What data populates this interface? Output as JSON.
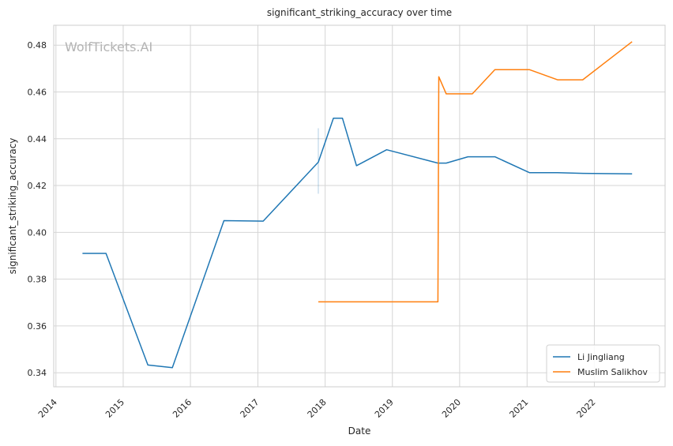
{
  "chart_data": {
    "type": "line",
    "title": "significant_striking_accuracy over time",
    "xlabel": "Date",
    "ylabel": "significant_striking_accuracy",
    "watermark": "WolfTickets.AI",
    "x_ticks": [
      "2014",
      "2015",
      "2016",
      "2017",
      "2018",
      "2019",
      "2020",
      "2021",
      "2022"
    ],
    "y_ticks": [
      "0.34",
      "0.36",
      "0.38",
      "0.40",
      "0.42",
      "0.44",
      "0.46",
      "0.48"
    ],
    "xlim": [
      "2013-12-20",
      "2023-01-20"
    ],
    "ylim": [
      0.334,
      0.4885
    ],
    "grid": true,
    "legend_position": "bottom-right",
    "series": [
      {
        "name": "Li Jingliang",
        "color": "#1f77b4",
        "points": [
          [
            "2014-05-25",
            0.391
          ],
          [
            "2014-09-30",
            0.391
          ],
          [
            "2015-05-15",
            0.3433
          ],
          [
            "2015-09-25",
            0.3422
          ],
          [
            "2016-07-01",
            0.405
          ],
          [
            "2017-01-30",
            0.4048
          ],
          [
            "2017-11-25",
            0.43
          ],
          [
            "2018-02-15",
            0.4488
          ],
          [
            "2018-04-05",
            0.4488
          ],
          [
            "2018-06-20",
            0.4285
          ],
          [
            "2018-12-01",
            0.4353
          ],
          [
            "2019-09-05",
            0.4296
          ],
          [
            "2019-10-20",
            0.4296
          ],
          [
            "2020-02-15",
            0.4323
          ],
          [
            "2020-07-10",
            0.4323
          ],
          [
            "2021-01-15",
            0.4255
          ],
          [
            "2021-06-15",
            0.4255
          ],
          [
            "2021-11-01",
            0.4252
          ],
          [
            "2022-07-25",
            0.425
          ]
        ]
      },
      {
        "name": "Muslim Salikhov",
        "color": "#ff7f0e",
        "points": [
          [
            "2017-11-25",
            0.3703
          ],
          [
            "2019-09-05",
            0.3703
          ],
          [
            "2019-09-10",
            0.4665
          ],
          [
            "2019-10-20",
            0.4592
          ],
          [
            "2020-03-10",
            0.4592
          ],
          [
            "2020-07-10",
            0.4695
          ],
          [
            "2021-01-15",
            0.4695
          ],
          [
            "2021-06-15",
            0.4652
          ],
          [
            "2021-10-30",
            0.4652
          ],
          [
            "2022-07-25",
            0.4815
          ]
        ]
      }
    ]
  }
}
